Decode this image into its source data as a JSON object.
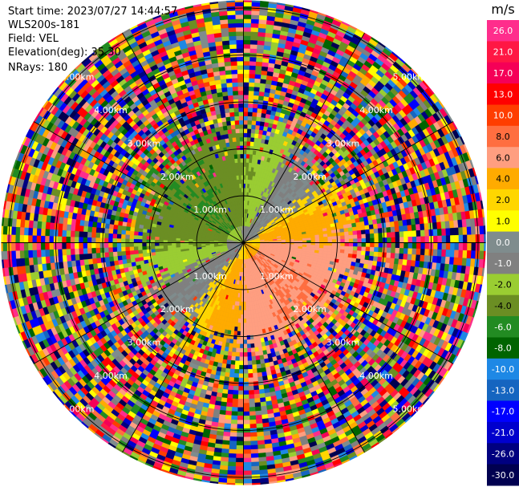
{
  "header": {
    "start_time": "Start time: 2023/07/27 14:44:57",
    "instrument": "WLS200s-181",
    "field": "Field: VEL",
    "elevation": "Elevation(deg): 35.30",
    "nrays": "NRays: 180"
  },
  "chart_data": {
    "type": "heatmap",
    "projection": "polar PPI (plan position indicator)",
    "field": "VEL",
    "rays": 180,
    "range_rings_km": [
      1.0,
      2.0,
      3.0,
      4.0,
      5.0
    ],
    "range_ring_labels": [
      "1.00km",
      "2.00km",
      "3.00km",
      "4.00km",
      "5.00km"
    ],
    "spokes_deg": [
      0,
      30,
      60,
      90,
      120,
      150,
      180,
      210,
      240,
      270,
      300,
      330
    ],
    "approx_max_range_km": 7.2,
    "colorbar": {
      "unit": "m/s",
      "tick_labels": [
        "26.0",
        "21.0",
        "17.0",
        "13.0",
        "10.0",
        "8.0",
        "6.0",
        "4.0",
        "2.0",
        "1.0",
        "0.0",
        "-1.0",
        "-2.0",
        "-4.0",
        "-6.0",
        "-8.0",
        "-10.0",
        "-13.0",
        "-17.0",
        "-21.0",
        "-26.0",
        "-30.0"
      ],
      "colors": [
        "#ff2d8c",
        "#ff1744",
        "#f50057",
        "#ff0000",
        "#ff3d00",
        "#ff6e40",
        "#ff9e80",
        "#ffab00",
        "#ffd600",
        "#ffff00",
        "#7f8c8d",
        "#808080",
        "#9acd32",
        "#6b8e23",
        "#228b22",
        "#006400",
        "#1e88e5",
        "#1565c0",
        "#0000ff",
        "#0000cd",
        "#000080",
        "#000050"
      ],
      "text_colors": [
        "#ffffff",
        "#ffffff",
        "#ffffff",
        "#ffffff",
        "#ffffff",
        "#000000",
        "#000000",
        "#000000",
        "#000000",
        "#000000",
        "#ffffff",
        "#ffffff",
        "#000000",
        "#000000",
        "#ffffff",
        "#ffffff",
        "#ffffff",
        "#ffffff",
        "#ffffff",
        "#ffffff",
        "#ffffff",
        "#ffffff"
      ]
    },
    "near_field_pattern": {
      "north_west_sector": "negative velocity (green, about -2 to -8 m/s)",
      "south_east_sector": "positive velocity (yellow/orange, about 2 to 6 m/s)",
      "west_and_east_bands": "near zero (gray)",
      "beyond_3km": "noise (random colors)"
    }
  }
}
